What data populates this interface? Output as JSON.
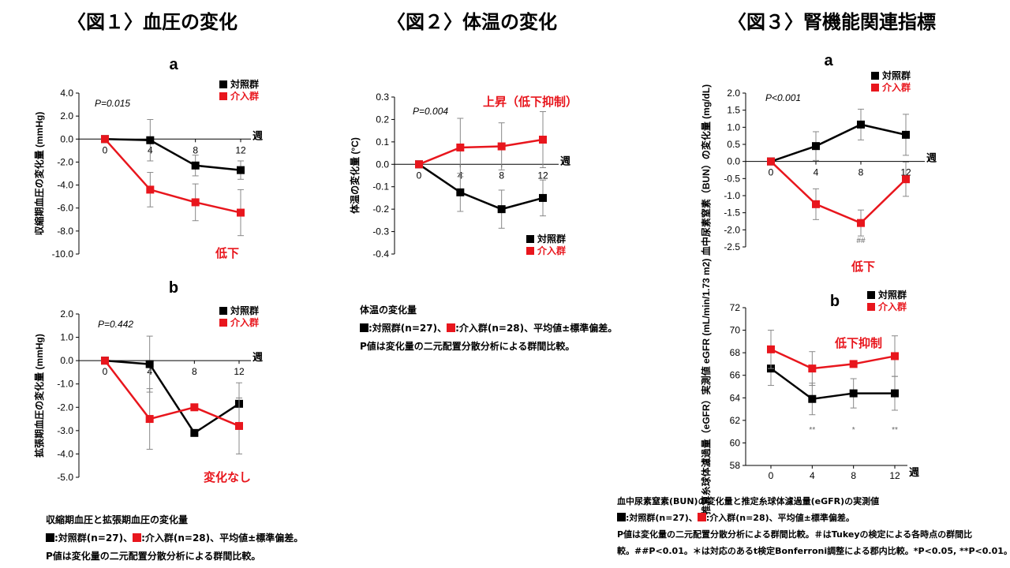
{
  "titles": {
    "fig1": "〈図１〉血圧の変化",
    "fig2": "〈図２〉体温の変化",
    "fig3": "〈図３〉腎機能関連指標"
  },
  "colors": {
    "control": "#000000",
    "intervention": "#e8161d",
    "annotation": "#e8161d"
  },
  "chart_data": [
    {
      "id": "sbp",
      "type": "line",
      "panel": "a",
      "ylabel": "収縮期血圧の変化量 (mmHg)",
      "x": [
        0,
        4,
        8,
        12
      ],
      "xunit": "週",
      "ylim": [
        -10.0,
        4.0
      ],
      "yticks": [
        4.0,
        2.0,
        0.0,
        -2.0,
        -4.0,
        -6.0,
        -8.0,
        -10.0
      ],
      "ydec": 1,
      "pvalue": "P=0.015",
      "legend_position": "top-right",
      "annotation": "低下",
      "series": [
        {
          "name": "対照群",
          "values": [
            0.0,
            -0.1,
            -2.3,
            -2.7
          ],
          "err": [
            0,
            1.8,
            0.9,
            0.8
          ]
        },
        {
          "name": "介入群",
          "values": [
            0.0,
            -4.4,
            -5.5,
            -6.4
          ],
          "err": [
            0,
            1.5,
            1.6,
            2.0
          ]
        }
      ]
    },
    {
      "id": "dbp",
      "type": "line",
      "panel": "b",
      "ylabel": "拡張期血圧の変化量 (mmHg)",
      "x": [
        0,
        4,
        8,
        12
      ],
      "xunit": "週",
      "ylim": [
        -5.0,
        2.0
      ],
      "yticks": [
        2.0,
        1.0,
        0.0,
        -1.0,
        -2.0,
        -3.0,
        -4.0,
        -5.0
      ],
      "ydec": 1,
      "pvalue": "P=0.442",
      "legend_position": "top-right",
      "annotation": "変化なし",
      "series": [
        {
          "name": "対照群",
          "values": [
            0.0,
            -0.15,
            -3.1,
            -1.85
          ],
          "err": [
            0,
            1.2,
            0,
            0.9
          ]
        },
        {
          "name": "介入群",
          "values": [
            0.0,
            -2.5,
            -2.0,
            -2.8
          ],
          "err": [
            0,
            1.3,
            0,
            1.2
          ]
        }
      ]
    },
    {
      "id": "temp",
      "type": "line",
      "ylabel": "体温の変化量 (°C)",
      "x": [
        0,
        4,
        8,
        12
      ],
      "xunit": "週",
      "ylim": [
        -0.4,
        0.3
      ],
      "yticks": [
        0.3,
        0.2,
        0.1,
        0.0,
        -0.1,
        -0.2,
        -0.3,
        -0.4
      ],
      "ydec": 1,
      "pvalue": "P=0.004",
      "legend_position": "bottom-right",
      "annotation": "上昇（低下抑制）",
      "series": [
        {
          "name": "対照群",
          "values": [
            0.0,
            -0.125,
            -0.2,
            -0.15
          ],
          "err": [
            0,
            0.085,
            0.085,
            0.08
          ]
        },
        {
          "name": "介入群",
          "values": [
            0.0,
            0.075,
            0.08,
            0.11
          ],
          "err": [
            0,
            0.13,
            0.105,
            0.125
          ]
        }
      ]
    },
    {
      "id": "bun",
      "type": "line",
      "panel": "a",
      "ylabel": "血中尿素窒素（BUN）の変化量 (mg/dL)",
      "x": [
        0,
        4,
        8,
        12
      ],
      "xunit": "週",
      "ylim": [
        -2.5,
        2.0
      ],
      "yticks": [
        2.0,
        1.5,
        1.0,
        0.5,
        0.0,
        -0.5,
        -1.0,
        -1.5,
        -2.0,
        -2.5
      ],
      "ydec": 1,
      "pvalue": "P<0.001",
      "legend_position": "top-right",
      "annotation": "低下",
      "sig_labels": [
        {
          "x": 8,
          "text": "##"
        }
      ],
      "series": [
        {
          "name": "対照群",
          "values": [
            0.0,
            0.45,
            1.08,
            0.78
          ],
          "err": [
            0,
            0.42,
            0.45,
            0.6
          ]
        },
        {
          "name": "介入群",
          "values": [
            0.0,
            -1.25,
            -1.8,
            -0.52
          ],
          "err": [
            0,
            0.45,
            0.38,
            0.5
          ]
        }
      ]
    },
    {
      "id": "egfr",
      "type": "line",
      "panel": "b",
      "ylabel": "推算糸球体濾過量（eGFR）実測値 eGFR (mL/min/1.73 m2)",
      "x": [
        0,
        4,
        8,
        12
      ],
      "xunit": "週",
      "ylim": [
        58,
        72
      ],
      "yticks": [
        72,
        70,
        68,
        66,
        64,
        62,
        60,
        58
      ],
      "ydec": 0,
      "legend_position": "top-right",
      "annotation": "低下抑制",
      "sig_labels": [
        {
          "x": 4,
          "text": "**"
        },
        {
          "x": 8,
          "text": "*"
        },
        {
          "x": 12,
          "text": "**"
        }
      ],
      "series": [
        {
          "name": "対照群",
          "values": [
            66.6,
            63.9,
            64.4,
            64.4
          ],
          "err": [
            1.5,
            1.4,
            1.3,
            1.5
          ]
        },
        {
          "name": "介入群",
          "values": [
            68.3,
            66.6,
            67.0,
            67.7
          ],
          "err": [
            1.7,
            1.5,
            0,
            1.8
          ]
        }
      ]
    }
  ],
  "captions": {
    "fig1": {
      "title": "収縮期血圧と拡張期血圧の変化量",
      "legend_control": ":対照群(n=27)、",
      "legend_intervention": ":介入群(n=28)、平均値±標準偏差。",
      "note": "P値は変化量の二元配置分散分析による群間比較。"
    },
    "fig2": {
      "title": "体温の変化量",
      "legend_control": ":対照群(n=27)、",
      "legend_intervention": ":介入群(n=28)、平均値±標準偏差。",
      "note": "P値は変化量の二元配置分散分析による群間比較。"
    },
    "fig3": {
      "title": "血中尿素窒素(BUN)の変化量と推定糸球体濾過量(eGFR)の実測値",
      "legend_control": ":対照群(n=27)、",
      "legend_intervention": ":介入群(n=28)、平均値±標準偏差。",
      "note1": "P値は変化量の二元配置分散分析による群間比較。＃はTukeyの検定による各時点の群間比",
      "note2": "較。##P<0.01。＊は対応のあるt検定Bonferroni調整による郡内比較。*P<0.05, **P<0.01。"
    }
  }
}
